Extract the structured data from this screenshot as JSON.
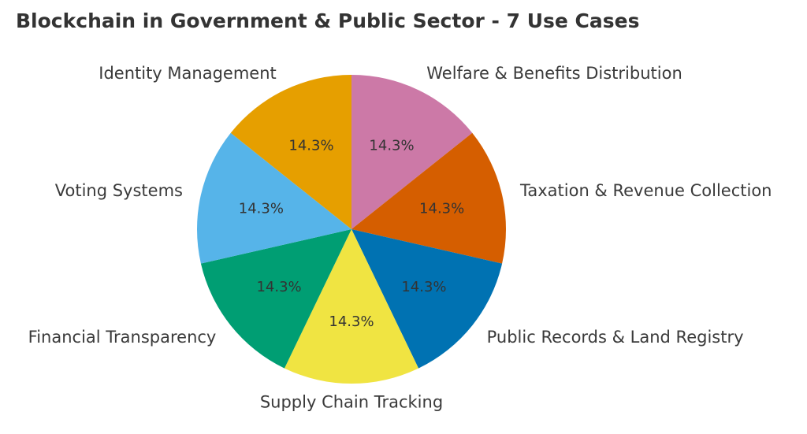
{
  "chart_data": {
    "type": "pie",
    "title": "Blockchain in Government & Public Sector - 7 Use Cases",
    "categories": [
      "Welfare & Benefits Distribution",
      "Taxation & Revenue Collection",
      "Public Records & Land Registry",
      "Supply Chain Tracking",
      "Financial Transparency",
      "Voting Systems",
      "Identity Management"
    ],
    "values": [
      1,
      1,
      1,
      1,
      1,
      1,
      1
    ],
    "percent_labels": [
      "14.3%",
      "14.3%",
      "14.3%",
      "14.3%",
      "14.3%",
      "14.3%",
      "14.3%"
    ],
    "colors": [
      "#CC79A7",
      "#D55E00",
      "#0072B2",
      "#F0E442",
      "#009E73",
      "#56B4E9",
      "#E69F00"
    ],
    "start_angle_deg": 90,
    "direction": "clockwise",
    "legend": "none"
  }
}
